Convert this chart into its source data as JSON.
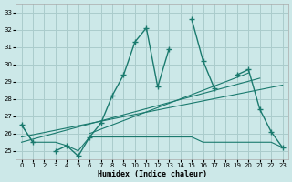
{
  "xlabel": "Humidex (Indice chaleur)",
  "bg_color": "#cce8e8",
  "grid_color": "#aacccc",
  "line_color": "#1a7a6e",
  "xlim": [
    -0.5,
    23.5
  ],
  "ylim": [
    24.5,
    33.5
  ],
  "yticks": [
    25,
    26,
    27,
    28,
    29,
    30,
    31,
    32,
    33
  ],
  "xticks": [
    0,
    1,
    2,
    3,
    4,
    5,
    6,
    7,
    8,
    9,
    10,
    11,
    12,
    13,
    14,
    15,
    16,
    17,
    18,
    19,
    20,
    21,
    22,
    23
  ],
  "main_series": [
    26.5,
    25.5,
    null,
    25.0,
    25.3,
    24.7,
    25.8,
    26.6,
    28.2,
    29.4,
    31.3,
    32.1,
    28.7,
    30.9,
    null,
    32.6,
    30.2,
    28.6,
    null,
    29.4,
    29.7,
    27.4,
    26.1,
    25.2
  ],
  "flat_series": [
    26.5,
    25.5,
    25.5,
    25.5,
    25.3,
    25.0,
    25.8,
    25.8,
    25.8,
    25.8,
    25.8,
    25.8,
    25.8,
    25.8,
    25.8,
    25.8,
    25.5,
    25.5,
    25.5,
    25.5,
    25.5,
    25.5,
    25.5,
    25.2
  ],
  "trend1_x": [
    0,
    23
  ],
  "trend1_y": [
    25.8,
    28.8
  ],
  "trend2_x": [
    0,
    21
  ],
  "trend2_y": [
    25.5,
    29.2
  ],
  "trend3_x": [
    6,
    20
  ],
  "trend3_y": [
    26.0,
    29.5
  ]
}
